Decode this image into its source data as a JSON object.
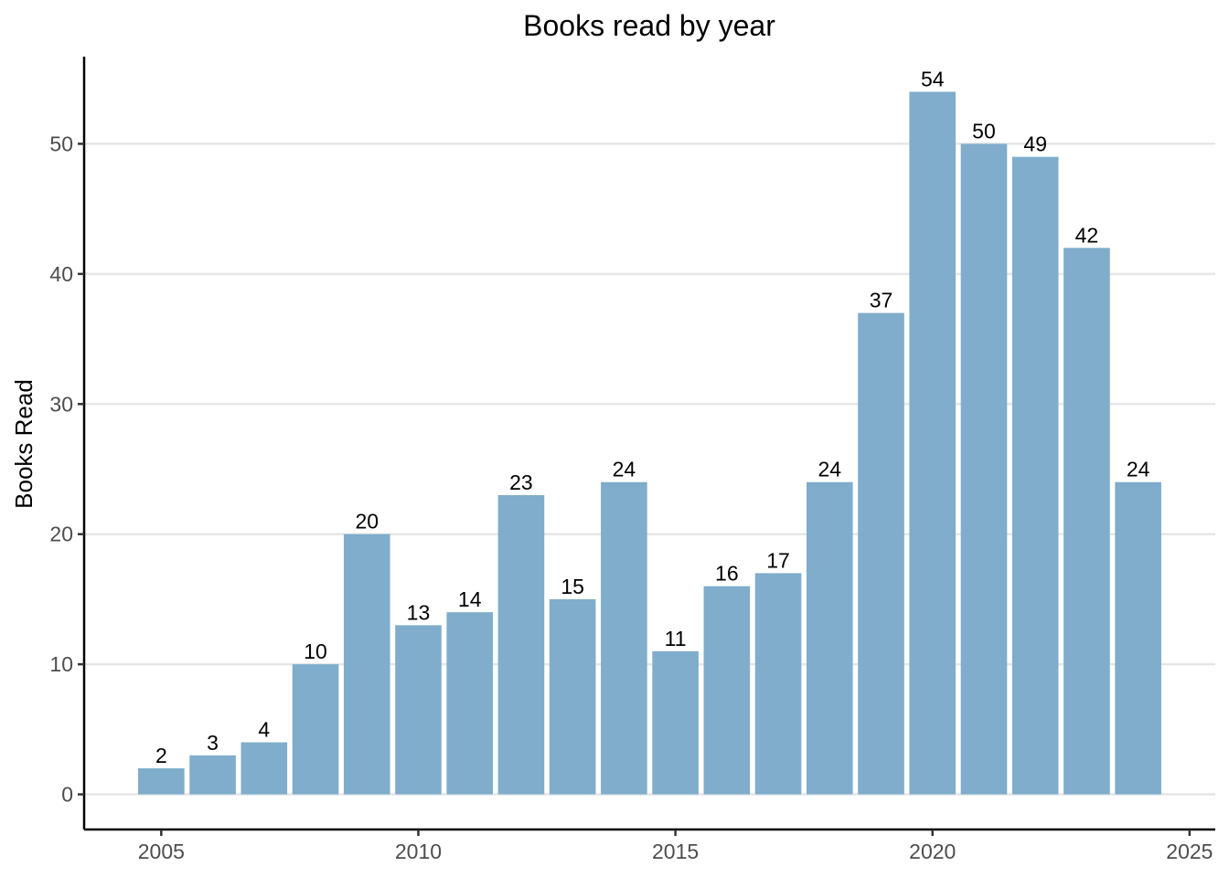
{
  "chart_data": {
    "type": "bar",
    "title": "Books read by year",
    "xlabel": "",
    "ylabel": "Books Read",
    "x": [
      2005,
      2006,
      2007,
      2008,
      2009,
      2010,
      2011,
      2012,
      2013,
      2014,
      2015,
      2016,
      2017,
      2018,
      2019,
      2020,
      2021,
      2022,
      2023,
      2024
    ],
    "values": [
      2,
      3,
      4,
      10,
      20,
      13,
      14,
      23,
      15,
      24,
      11,
      16,
      17,
      24,
      37,
      54,
      50,
      49,
      42,
      24
    ],
    "xlim": [
      2003.5,
      2025.5
    ],
    "ylim": [
      -2.7,
      56.7
    ],
    "xticks": [
      2005,
      2010,
      2015,
      2020,
      2025
    ],
    "yticks": [
      0,
      10,
      20,
      30,
      40,
      50
    ],
    "grid": "horizontal",
    "bar_color": "#7FADCB",
    "data_labels": true
  }
}
